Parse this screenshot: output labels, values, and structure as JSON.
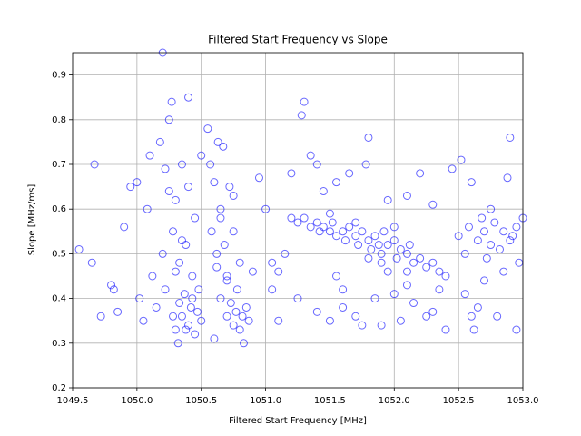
{
  "chart_data": {
    "type": "scatter",
    "title": "Filtered Start Frequency vs Slope",
    "x_label": "Filtered Start Frequency [MHz]",
    "y_label": "Slope [MHz/ms]",
    "xlim": [
      1049.5,
      1053.0
    ],
    "ylim": [
      0.2,
      0.95
    ],
    "xticks": [
      1049.5,
      {
        "value": 1050,
        "label": "1050.0"
      },
      1050.5,
      {
        "value": 1051,
        "label": "1051.0"
      },
      1051.5,
      {
        "value": 1052,
        "label": "1052.0"
      },
      1052.5,
      {
        "value": 1053,
        "label": "1053.0"
      }
    ],
    "yticks": [
      0.2,
      0.3,
      0.4,
      0.5,
      0.6,
      0.7,
      0.8,
      0.9
    ],
    "grid": true,
    "series": [
      {
        "color": "blue",
        "x": [
          1049.55,
          1049.65,
          1049.67,
          1049.72,
          1049.8,
          1049.82,
          1049.85,
          1049.9,
          1049.95,
          1050.0,
          1050.02,
          1050.05,
          1050.08,
          1050.1,
          1050.12,
          1050.15,
          1050.18,
          1050.2,
          1050.22,
          1050.25,
          1050.27,
          1050.28,
          1050.3,
          1050.3,
          1050.32,
          1050.33,
          1050.35,
          1050.35,
          1050.37,
          1050.38,
          1050.4,
          1050.4,
          1050.42,
          1050.43,
          1050.45,
          1050.45,
          1050.47,
          1050.48,
          1050.5,
          1050.5,
          1050.2,
          1050.22,
          1050.25,
          1050.28,
          1050.3,
          1050.33,
          1050.35,
          1050.38,
          1050.4,
          1050.43,
          1050.55,
          1050.57,
          1050.58,
          1050.6,
          1050.62,
          1050.63,
          1050.65,
          1050.65,
          1050.67,
          1050.68,
          1050.7,
          1050.7,
          1050.72,
          1050.73,
          1050.75,
          1050.75,
          1050.77,
          1050.78,
          1050.8,
          1050.8,
          1050.82,
          1050.83,
          1050.85,
          1050.87,
          1050.9,
          1050.6,
          1050.65,
          1050.7,
          1050.75,
          1050.62,
          1051.2,
          1051.25,
          1051.3,
          1051.35,
          1051.4,
          1051.42,
          1051.45,
          1051.5,
          1051.52,
          1051.55,
          1051.6,
          1051.62,
          1051.65,
          1051.7,
          1051.72,
          1051.75,
          1051.8,
          1051.82,
          1051.85,
          1051.88,
          1051.9,
          1051.92,
          1051.95,
          1052.0,
          1052.02,
          1052.05,
          1052.1,
          1052.12,
          1052.15,
          1052.2,
          1052.25,
          1052.3,
          1052.35,
          1052.4,
          1051.5,
          1051.7,
          1051.9,
          1052.1,
          1051.8,
          1052.0,
          1050.95,
          1051.0,
          1051.05,
          1051.1,
          1051.15,
          1051.2,
          1051.28,
          1051.3,
          1051.35,
          1051.4,
          1051.45,
          1051.5,
          1051.55,
          1051.6,
          1051.65,
          1051.7,
          1051.78,
          1051.8,
          1051.85,
          1051.9,
          1051.95,
          1052.0,
          1052.05,
          1052.1,
          1052.15,
          1052.2,
          1052.25,
          1052.3,
          1052.35,
          1052.4,
          1051.1,
          1051.25,
          1051.4,
          1051.55,
          1051.75,
          1051.95,
          1052.1,
          1052.3,
          1051.05,
          1051.6,
          1052.45,
          1052.5,
          1052.52,
          1052.55,
          1052.58,
          1052.6,
          1052.62,
          1052.65,
          1052.68,
          1052.7,
          1052.72,
          1052.75,
          1052.78,
          1052.8,
          1052.82,
          1052.85,
          1052.88,
          1052.9,
          1052.92,
          1052.95,
          1052.97,
          1053.0,
          1052.55,
          1052.65,
          1052.75,
          1052.85,
          1052.9,
          1052.95,
          1052.6,
          1052.7
        ],
        "values": [
          0.51,
          0.48,
          0.7,
          0.36,
          0.43,
          0.42,
          0.37,
          0.56,
          0.65,
          0.66,
          0.4,
          0.35,
          0.6,
          0.72,
          0.45,
          0.38,
          0.75,
          0.95,
          0.69,
          0.8,
          0.84,
          0.55,
          0.33,
          0.62,
          0.3,
          0.48,
          0.36,
          0.7,
          0.41,
          0.52,
          0.34,
          0.65,
          0.38,
          0.45,
          0.32,
          0.58,
          0.37,
          0.42,
          0.35,
          0.72,
          0.5,
          0.42,
          0.64,
          0.36,
          0.46,
          0.39,
          0.53,
          0.33,
          0.85,
          0.4,
          0.78,
          0.7,
          0.55,
          0.66,
          0.47,
          0.75,
          0.6,
          0.4,
          0.74,
          0.52,
          0.45,
          0.36,
          0.65,
          0.39,
          0.34,
          0.55,
          0.37,
          0.42,
          0.33,
          0.48,
          0.36,
          0.3,
          0.38,
          0.35,
          0.46,
          0.31,
          0.58,
          0.44,
          0.63,
          0.5,
          0.58,
          0.57,
          0.58,
          0.56,
          0.57,
          0.55,
          0.56,
          0.55,
          0.57,
          0.54,
          0.55,
          0.53,
          0.56,
          0.54,
          0.52,
          0.55,
          0.53,
          0.51,
          0.54,
          0.52,
          0.5,
          0.55,
          0.52,
          0.53,
          0.49,
          0.51,
          0.5,
          0.52,
          0.48,
          0.49,
          0.47,
          0.48,
          0.46,
          0.45,
          0.59,
          0.57,
          0.48,
          0.46,
          0.49,
          0.56,
          0.67,
          0.6,
          0.42,
          0.35,
          0.5,
          0.68,
          0.81,
          0.84,
          0.72,
          0.37,
          0.64,
          0.35,
          0.45,
          0.38,
          0.68,
          0.36,
          0.7,
          0.76,
          0.4,
          0.34,
          0.62,
          0.41,
          0.35,
          0.43,
          0.39,
          0.68,
          0.36,
          0.61,
          0.42,
          0.33,
          0.46,
          0.4,
          0.7,
          0.66,
          0.34,
          0.46,
          0.63,
          0.37,
          0.48,
          0.42,
          0.69,
          0.54,
          0.71,
          0.5,
          0.56,
          0.66,
          0.33,
          0.53,
          0.58,
          0.55,
          0.49,
          0.52,
          0.57,
          0.36,
          0.51,
          0.55,
          0.67,
          0.76,
          0.54,
          0.33,
          0.48,
          0.58,
          0.41,
          0.38,
          0.6,
          0.46,
          0.53,
          0.56,
          0.36,
          0.44
        ]
      }
    ]
  }
}
